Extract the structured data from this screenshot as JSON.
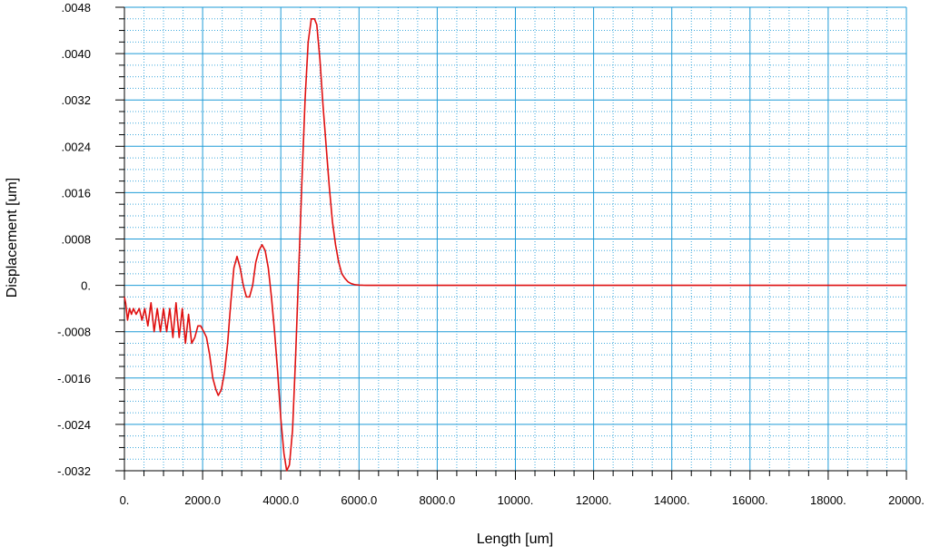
{
  "colors": {
    "major_grid": "#1E9BD7",
    "minor_grid": "#1E9BD7",
    "series": "#E01010",
    "axis": "#000000",
    "background": "#FFFFFF"
  },
  "chart_data": {
    "type": "line",
    "title": "",
    "xlabel": "Length [um]",
    "ylabel": "Displacement [um]",
    "xlim": [
      0,
      20000
    ],
    "ylim": [
      -0.0032,
      0.0048
    ],
    "grid": true,
    "minor_grid": true,
    "legend": "none",
    "x_ticks": [
      {
        "value": 0,
        "label": "0."
      },
      {
        "value": 2000,
        "label": "2000.0"
      },
      {
        "value": 4000,
        "label": "4000.0"
      },
      {
        "value": 6000,
        "label": "6000.0"
      },
      {
        "value": 8000,
        "label": "8000.0"
      },
      {
        "value": 10000,
        "label": "10000."
      },
      {
        "value": 12000,
        "label": "12000."
      },
      {
        "value": 14000,
        "label": "14000."
      },
      {
        "value": 16000,
        "label": "16000."
      },
      {
        "value": 18000,
        "label": "18000."
      },
      {
        "value": 20000,
        "label": "20000."
      }
    ],
    "y_ticks": [
      {
        "value": 0.0048,
        "label": ".0048"
      },
      {
        "value": 0.004,
        "label": ".0040"
      },
      {
        "value": 0.0032,
        "label": ".0032"
      },
      {
        "value": 0.0024,
        "label": ".0024"
      },
      {
        "value": 0.0016,
        "label": ".0016"
      },
      {
        "value": 0.0008,
        "label": ".0008"
      },
      {
        "value": 0,
        "label": "0."
      },
      {
        "value": -0.0008,
        "label": "-.0008"
      },
      {
        "value": -0.0016,
        "label": "-.0016"
      },
      {
        "value": -0.0024,
        "label": "-.0024"
      },
      {
        "value": -0.0032,
        "label": "-.0032"
      }
    ],
    "series": [
      {
        "x": [
          0,
          30,
          80,
          130,
          180,
          230,
          300,
          380,
          450,
          520,
          600,
          680,
          760,
          840,
          920,
          1000,
          1080,
          1160,
          1240,
          1320,
          1400,
          1480,
          1560,
          1640,
          1720,
          1800,
          1880,
          1950,
          2030,
          2100,
          2180,
          2260,
          2340,
          2400,
          2480,
          2560,
          2640,
          2720,
          2800,
          2880,
          2960,
          3040,
          3120,
          3200,
          3280,
          3360,
          3440,
          3520,
          3600,
          3680,
          3760,
          3840,
          3920,
          4000,
          4080,
          4150,
          4220,
          4300,
          4380,
          4460,
          4540,
          4620,
          4700,
          4780,
          4860,
          4920,
          5000,
          5080,
          5160,
          5240,
          5320,
          5400,
          5480,
          5560,
          5640,
          5720,
          5800,
          5900,
          6000,
          6100,
          6200,
          6300,
          7000,
          8000,
          10000,
          12000,
          14000,
          16000,
          18000,
          20000
        ],
        "y": [
          -0.0002,
          -0.0003,
          -0.0006,
          -0.0004,
          -0.0005,
          -0.0004,
          -0.0005,
          -0.0004,
          -0.0006,
          -0.0004,
          -0.0007,
          -0.0003,
          -0.0008,
          -0.0004,
          -0.0008,
          -0.0004,
          -0.0008,
          -0.0004,
          -0.0009,
          -0.0003,
          -0.0009,
          -0.0004,
          -0.001,
          -0.0005,
          -0.001,
          -0.0009,
          -0.0007,
          -0.0007,
          -0.0008,
          -0.0009,
          -0.0012,
          -0.0016,
          -0.0018,
          -0.0019,
          -0.0018,
          -0.0015,
          -0.001,
          -0.0003,
          0.0003,
          0.0005,
          0.0003,
          0.0,
          -0.0002,
          -0.0002,
          0.0,
          0.0004,
          0.0006,
          0.0007,
          0.0006,
          0.0003,
          -0.0002,
          -0.0008,
          -0.0015,
          -0.0023,
          -0.0029,
          -0.0032,
          -0.0031,
          -0.0025,
          -0.0012,
          0.0003,
          0.0018,
          0.0032,
          0.0042,
          0.0046,
          0.0046,
          0.0045,
          0.0039,
          0.0031,
          0.0024,
          0.0017,
          0.0011,
          0.0007,
          0.0004,
          0.0002,
          0.00012,
          6e-05,
          3e-05,
          1e-05,
          5e-06,
          2e-06,
          1e-06,
          0,
          0,
          0,
          0,
          0,
          0,
          0,
          0,
          0
        ]
      }
    ]
  }
}
